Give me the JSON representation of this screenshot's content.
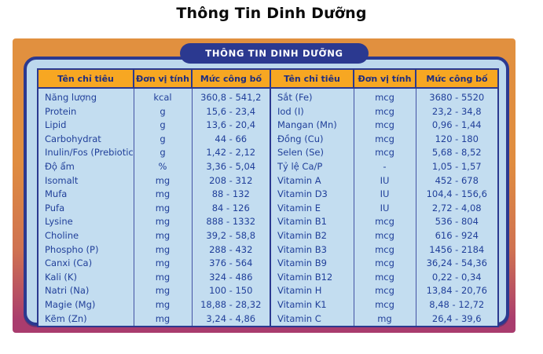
{
  "page": {
    "title": "Thông Tin Dinh Dưỡng"
  },
  "panel": {
    "pill_header": "THÔNG TIN DINH DƯỠNG",
    "colors": {
      "panel_orange": "#E1903F",
      "panel_crimson": "#A93C6E",
      "navy": "#2B3990",
      "light_blue": "#BCD8ED",
      "header_cell_orange": "#F7A722",
      "table_text_navy": "#21409A",
      "pill_text": "#FFFFFF"
    }
  },
  "table": {
    "headers": [
      "Tên chỉ tiêu",
      "Đơn vị tính",
      "Mức công bố",
      "Tên chỉ tiêu",
      "Đơn vị tính",
      "Mức công bố"
    ],
    "rows": [
      [
        "Năng lượng",
        "kcal",
        "360,8 - 541,2",
        "Sắt (Fe)",
        "mcg",
        "3680 - 5520"
      ],
      [
        "Protein",
        "g",
        "15,6 - 23,4",
        "Iod (I)",
        "mcg",
        "23,2 - 34,8"
      ],
      [
        "Lipid",
        "g",
        "13,6 - 20,4",
        "Mangan (Mn)",
        "mcg",
        "0,96 - 1,44"
      ],
      [
        "Carbohydrat",
        "g",
        "44 - 66",
        "Đồng (Cu)",
        "mcg",
        "120 - 180"
      ],
      [
        "Inulin/Fos (Prebiotic)",
        "g",
        "1,42 - 2,12",
        "Selen (Se)",
        "mcg",
        "5,68 - 8,52"
      ],
      [
        "Độ ẩm",
        "%",
        "3,36 - 5,04",
        "Tỷ lệ Ca/P",
        "-",
        "1,05 - 1,57"
      ],
      [
        "Isomalt",
        "mg",
        "208 - 312",
        "Vitamin A",
        "IU",
        "452 - 678"
      ],
      [
        "Mufa",
        "mg",
        "88 - 132",
        "Vitamin D3",
        "IU",
        "104,4 - 156,6"
      ],
      [
        "Pufa",
        "mg",
        "84 - 126",
        "Vitamin E",
        "IU",
        "2,72 - 4,08"
      ],
      [
        "Lysine",
        "mg",
        "888 - 1332",
        "Vitamin B1",
        "mcg",
        "536 - 804"
      ],
      [
        "Choline",
        "mg",
        "39,2 - 58,8",
        "Vitamin B2",
        "mcg",
        "616 - 924"
      ],
      [
        "Phospho (P)",
        "mg",
        "288 - 432",
        "Vitamin B3",
        "mcg",
        "1456 - 2184"
      ],
      [
        "Canxi (Ca)",
        "mg",
        "376 - 564",
        "Vitamin B9",
        "mcg",
        "36,24 - 54,36"
      ],
      [
        "Kali (K)",
        "mg",
        "324 - 486",
        "Vitamin B12",
        "mcg",
        "0,22 - 0,34"
      ],
      [
        "Natri (Na)",
        "mg",
        "100 - 150",
        "Vitamin H",
        "mcg",
        "13,84 - 20,76"
      ],
      [
        "Magie (Mg)",
        "mg",
        "18,88 - 28,32",
        "Vitamin K1",
        "mcg",
        "8,48 - 12,72"
      ],
      [
        "Kẽm (Zn)",
        "mg",
        "3,24 - 4,86",
        "Vitamin C",
        "mg",
        "26,4 - 39,6"
      ]
    ]
  }
}
